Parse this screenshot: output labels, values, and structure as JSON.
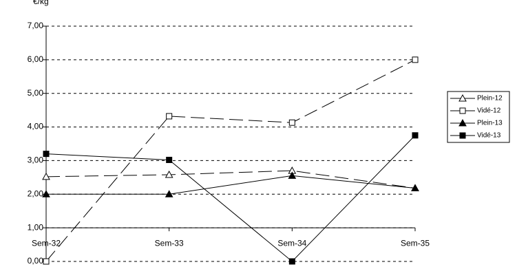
{
  "chart_data": {
    "type": "line",
    "y_label": "€/kg",
    "categories": [
      "Sem-32",
      "Sem-33",
      "Sem-34",
      "Sem-35"
    ],
    "series": [
      {
        "name": "Plein-12",
        "color": "#000000",
        "line_style": "dashed",
        "marker": "triangle-open",
        "values": [
          2.52,
          2.58,
          2.7,
          2.18
        ]
      },
      {
        "name": "Vidé-12",
        "color": "#000000",
        "line_style": "dashed",
        "marker": "square-open",
        "values": [
          0.0,
          4.32,
          4.13,
          6.0
        ]
      },
      {
        "name": "Plein-13",
        "color": "#000000",
        "line_style": "solid",
        "marker": "triangle-filled",
        "values": [
          2.0,
          2.0,
          2.55,
          2.18
        ]
      },
      {
        "name": "Vidé-13",
        "color": "#000000",
        "line_style": "solid",
        "marker": "square-filled",
        "values": [
          3.2,
          3.02,
          0.0,
          3.75
        ]
      }
    ],
    "ylim": [
      0,
      7
    ],
    "yticks": [
      {
        "value": 0,
        "label": "0,00"
      },
      {
        "value": 1,
        "label": "1,00"
      },
      {
        "value": 2,
        "label": "2,00"
      },
      {
        "value": 3,
        "label": "3,00"
      },
      {
        "value": 4,
        "label": "4,00"
      },
      {
        "value": 5,
        "label": "5,00"
      },
      {
        "value": 6,
        "label": "6,00"
      },
      {
        "value": 7,
        "label": "7,00"
      }
    ],
    "x_axis_crosses_at": 1,
    "grid": true,
    "legend": "right"
  }
}
